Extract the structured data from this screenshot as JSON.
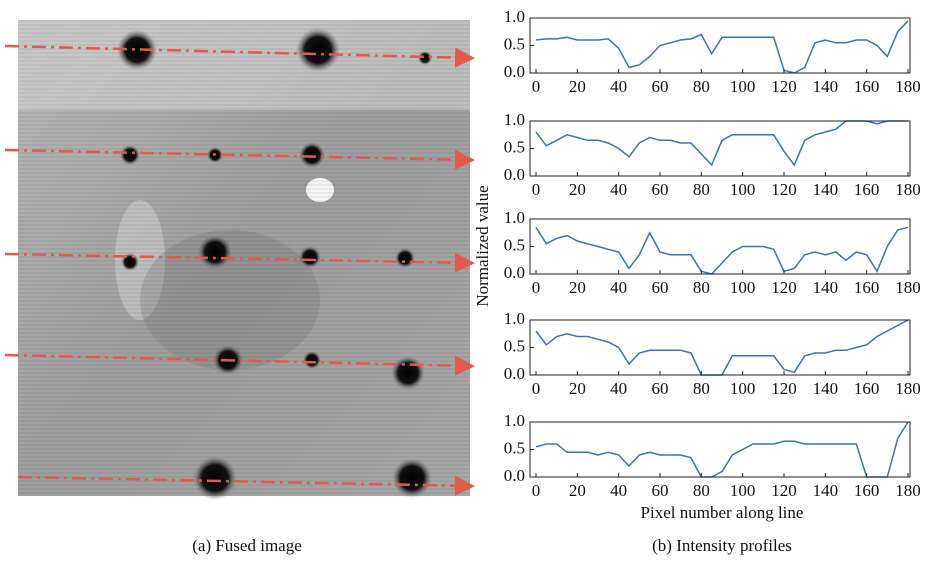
{
  "captions": {
    "left": "(a) Fused image",
    "right": "(b) Intensity profiles"
  },
  "chart_data": [
    {
      "type": "line",
      "xlim": [
        0,
        180
      ],
      "ylim": [
        0,
        1
      ],
      "xticks": [
        0,
        20,
        40,
        60,
        80,
        100,
        120,
        140,
        160,
        180
      ],
      "yticks": [
        {
          "value": 0,
          "label": "0.0"
        },
        {
          "value": 0.5,
          "label": "0.5"
        },
        {
          "value": 1,
          "label": "1.0"
        }
      ],
      "x": [
        0,
        5,
        10,
        15,
        20,
        25,
        30,
        35,
        40,
        45,
        50,
        55,
        60,
        65,
        70,
        75,
        80,
        85,
        90,
        95,
        100,
        105,
        110,
        115,
        120,
        125,
        130,
        135,
        140,
        145,
        150,
        155,
        160,
        165,
        170,
        175,
        180
      ],
      "series": [
        {
          "color": "#3a6fc4",
          "values": [
            0.6,
            0.62,
            0.62,
            0.65,
            0.6,
            0.6,
            0.6,
            0.62,
            0.45,
            0.1,
            0.15,
            0.3,
            0.5,
            0.55,
            0.6,
            0.62,
            0.7,
            0.35,
            0.65,
            0.65,
            0.65,
            0.65,
            0.65,
            0.65,
            0.05,
            0,
            0.1,
            0.55,
            0.6,
            0.55,
            0.55,
            0.6,
            0.6,
            0.5,
            0.3,
            0.75,
            0.95
          ]
        }
      ]
    },
    {
      "type": "line",
      "xlim": [
        0,
        180
      ],
      "ylim": [
        0,
        1
      ],
      "xticks": [
        0,
        20,
        40,
        60,
        80,
        100,
        120,
        140,
        160,
        180
      ],
      "yticks": [
        {
          "value": 0,
          "label": "0.0"
        },
        {
          "value": 0.5,
          "label": "0.5"
        },
        {
          "value": 1,
          "label": "1.0"
        }
      ],
      "x": [
        0,
        5,
        10,
        15,
        20,
        25,
        30,
        35,
        40,
        45,
        50,
        55,
        60,
        65,
        70,
        75,
        80,
        85,
        90,
        95,
        100,
        105,
        110,
        115,
        120,
        125,
        130,
        135,
        140,
        145,
        150,
        155,
        160,
        165,
        170,
        175,
        180
      ],
      "series": [
        {
          "color": "#3a6fc4",
          "values": [
            0.8,
            0.55,
            0.65,
            0.75,
            0.7,
            0.65,
            0.65,
            0.6,
            0.5,
            0.35,
            0.6,
            0.7,
            0.65,
            0.65,
            0.6,
            0.6,
            0.4,
            0.2,
            0.65,
            0.75,
            0.75,
            0.75,
            0.75,
            0.75,
            0.45,
            0.2,
            0.65,
            0.75,
            0.8,
            0.85,
            1,
            1,
            1,
            0.95,
            1,
            1,
            1
          ]
        }
      ]
    },
    {
      "type": "line",
      "xlim": [
        0,
        180
      ],
      "ylim": [
        0,
        1
      ],
      "xticks": [
        0,
        20,
        40,
        60,
        80,
        100,
        120,
        140,
        160,
        180
      ],
      "yticks": [
        {
          "value": 0,
          "label": "0.0"
        },
        {
          "value": 0.5,
          "label": "0.5"
        },
        {
          "value": 1,
          "label": "1.0"
        }
      ],
      "ylabel": "Normalized value",
      "x": [
        0,
        5,
        10,
        15,
        20,
        25,
        30,
        35,
        40,
        45,
        50,
        55,
        60,
        65,
        70,
        75,
        80,
        85,
        90,
        95,
        100,
        105,
        110,
        115,
        120,
        125,
        130,
        135,
        140,
        145,
        150,
        155,
        160,
        165,
        170,
        175,
        180
      ],
      "series": [
        {
          "color": "#3a6fc4",
          "values": [
            0.85,
            0.55,
            0.65,
            0.7,
            0.6,
            0.55,
            0.5,
            0.45,
            0.4,
            0.1,
            0.35,
            0.75,
            0.4,
            0.35,
            0.35,
            0.35,
            0.05,
            0,
            0.2,
            0.4,
            0.5,
            0.5,
            0.5,
            0.45,
            0.05,
            0.1,
            0.35,
            0.4,
            0.35,
            0.4,
            0.25,
            0.4,
            0.35,
            0.05,
            0.5,
            0.8,
            0.85
          ]
        }
      ]
    },
    {
      "type": "line",
      "xlim": [
        0,
        180
      ],
      "ylim": [
        0,
        1
      ],
      "xticks": [
        0,
        20,
        40,
        60,
        80,
        100,
        120,
        140,
        160,
        180
      ],
      "yticks": [
        {
          "value": 0,
          "label": "0.0"
        },
        {
          "value": 0.5,
          "label": "0.5"
        },
        {
          "value": 1,
          "label": "1.0"
        }
      ],
      "x": [
        0,
        5,
        10,
        15,
        20,
        25,
        30,
        35,
        40,
        45,
        50,
        55,
        60,
        65,
        70,
        75,
        80,
        85,
        90,
        95,
        100,
        105,
        110,
        115,
        120,
        125,
        130,
        135,
        140,
        145,
        150,
        155,
        160,
        165,
        170,
        175,
        180
      ],
      "series": [
        {
          "color": "#3a6fc4",
          "values": [
            0.8,
            0.55,
            0.7,
            0.75,
            0.7,
            0.7,
            0.65,
            0.6,
            0.5,
            0.2,
            0.4,
            0.45,
            0.45,
            0.45,
            0.45,
            0.4,
            0,
            0,
            0,
            0.35,
            0.35,
            0.35,
            0.35,
            0.35,
            0.1,
            0.05,
            0.35,
            0.4,
            0.4,
            0.45,
            0.45,
            0.5,
            0.55,
            0.7,
            0.8,
            0.9,
            1
          ]
        }
      ]
    },
    {
      "type": "line",
      "xlim": [
        0,
        180
      ],
      "ylim": [
        0,
        1
      ],
      "xticks": [
        0,
        20,
        40,
        60,
        80,
        100,
        120,
        140,
        160,
        180
      ],
      "yticks": [
        {
          "value": 0,
          "label": "0.0"
        },
        {
          "value": 0.5,
          "label": "0.5"
        },
        {
          "value": 1,
          "label": "1.0"
        }
      ],
      "xlabel": "Pixel number along line",
      "x": [
        0,
        5,
        10,
        15,
        20,
        25,
        30,
        35,
        40,
        45,
        50,
        55,
        60,
        65,
        70,
        75,
        80,
        85,
        90,
        95,
        100,
        105,
        110,
        115,
        120,
        125,
        130,
        135,
        140,
        145,
        150,
        155,
        160,
        165,
        170,
        175,
        180
      ],
      "series": [
        {
          "color": "#3a6fc4",
          "values": [
            0.55,
            0.6,
            0.6,
            0.45,
            0.45,
            0.45,
            0.4,
            0.45,
            0.4,
            0.2,
            0.4,
            0.45,
            0.4,
            0.4,
            0.4,
            0.35,
            0,
            0,
            0.1,
            0.4,
            0.5,
            0.6,
            0.6,
            0.6,
            0.65,
            0.65,
            0.6,
            0.6,
            0.6,
            0.6,
            0.6,
            0.6,
            0,
            0,
            0,
            0.7,
            1
          ]
        }
      ]
    }
  ]
}
